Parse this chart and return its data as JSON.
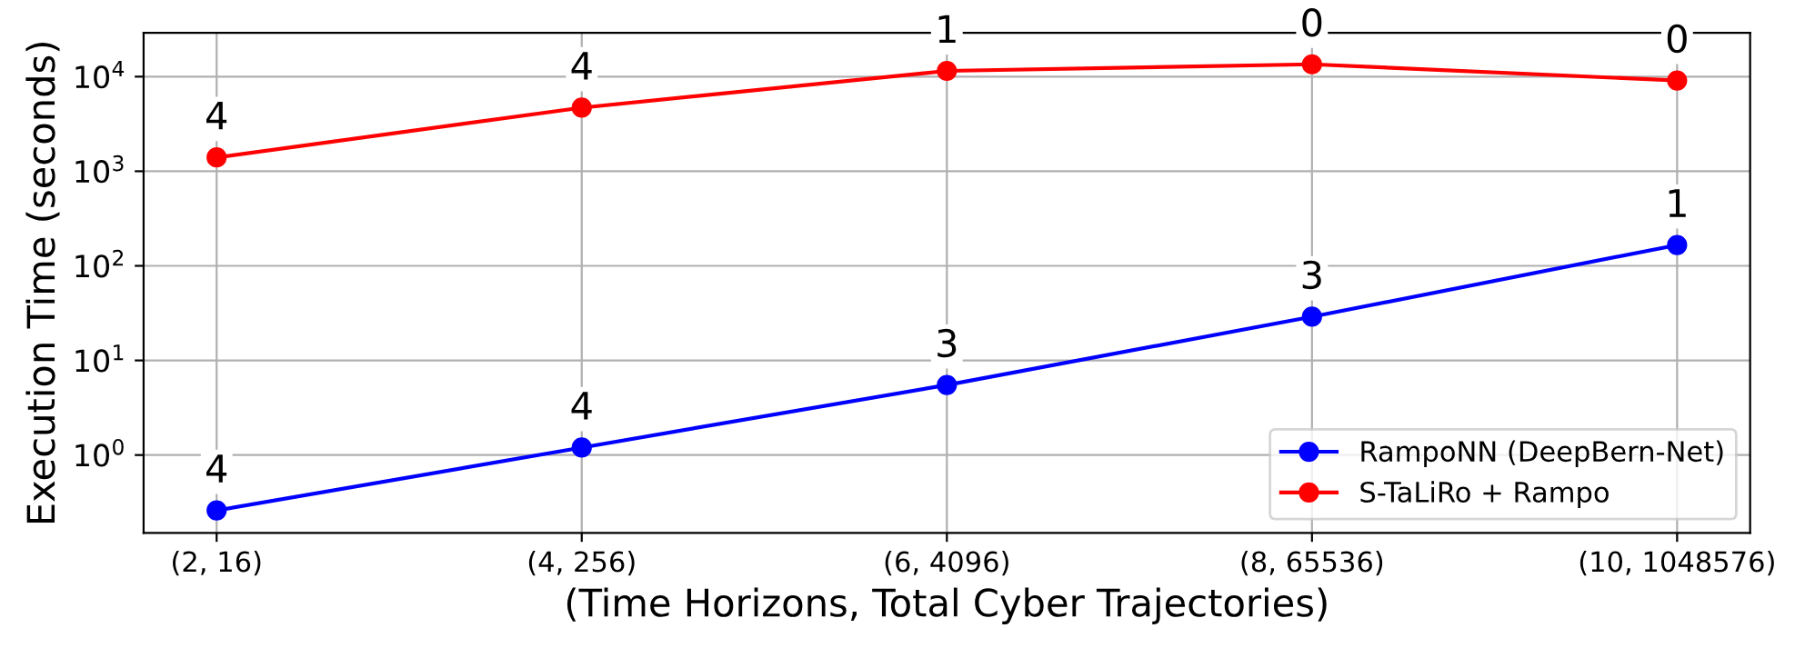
{
  "chart_data": {
    "type": "line",
    "xlabel": "(Time Horizons, Total Cyber Trajectories)",
    "ylabel": "Execution Time (seconds)",
    "categories": [
      "(2, 16)",
      "(4, 256)",
      "(6, 4096)",
      "(8, 65536)",
      "(10, 1048576)"
    ],
    "series": [
      {
        "name": "RampoNN (DeepBern-Net)",
        "color": "#0000ff",
        "values": [
          0.26,
          1.2,
          5.5,
          29,
          166
        ]
      },
      {
        "name": "S-TaLiRo + Rampo",
        "color": "#ff0000",
        "values": [
          1400,
          4700,
          11500,
          13500,
          9100
        ]
      }
    ],
    "log": "y",
    "ylim": [
      0.15,
      29000
    ],
    "yticks": [
      {
        "value": 1,
        "label": "10$^{0}$"
      },
      {
        "value": 10,
        "label": "10$^{1}$"
      },
      {
        "value": 100,
        "label": "10$^{2}$"
      },
      {
        "value": 1000,
        "label": "10$^{3}$"
      },
      {
        "value": 10000,
        "label": "10$^{4}$"
      }
    ],
    "grid": true,
    "legend": "lower right",
    "marker": "circle",
    "line_style": "solid",
    "annotations": [
      {
        "text": "4",
        "x": "(2, 16)",
        "y": 0.26
      },
      {
        "text": "4",
        "x": "(4, 256)",
        "y": 1.2
      },
      {
        "text": "3",
        "x": "(6, 4096)",
        "y": 5.5
      },
      {
        "text": "3",
        "x": "(8, 65536)",
        "y": 29
      },
      {
        "text": "1",
        "x": "(10, 1048576)",
        "y": 166
      },
      {
        "text": "4",
        "x": "(2, 16)",
        "y": 1400
      },
      {
        "text": "4",
        "x": "(4, 256)",
        "y": 4700
      },
      {
        "text": "1",
        "x": "(6, 4096)",
        "y": 11500
      },
      {
        "text": "0",
        "x": "(8, 65536)",
        "y": 13500
      },
      {
        "text": "0",
        "x": "(10, 1048576)",
        "y": 9100
      }
    ]
  }
}
